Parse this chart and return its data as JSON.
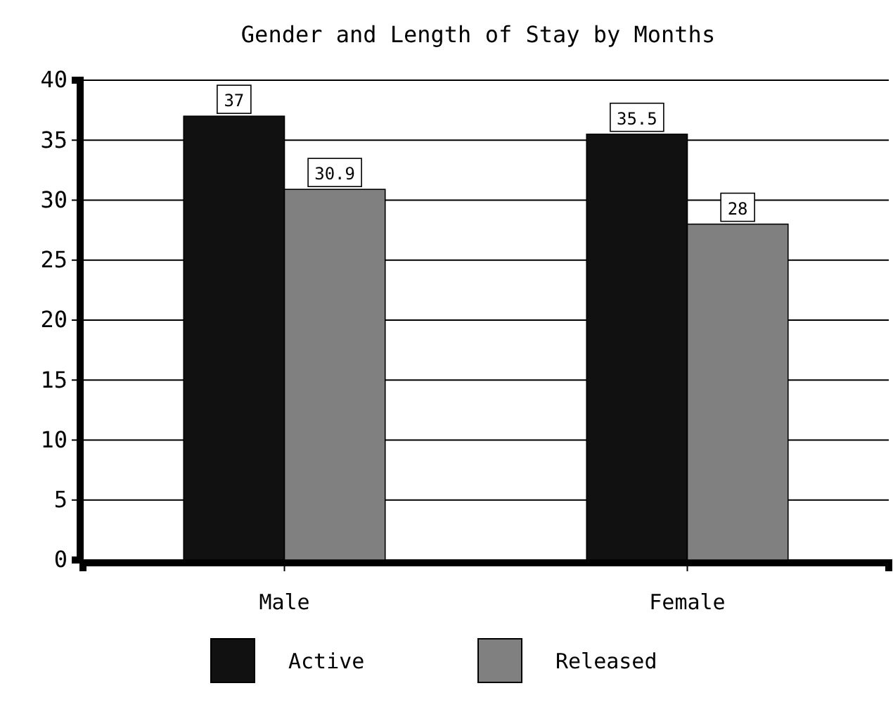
{
  "chart_data": {
    "type": "bar",
    "title": "Gender and Length of Stay by Months",
    "categories": [
      "Male",
      "Female"
    ],
    "series": [
      {
        "name": "Active",
        "color": "#111111",
        "values": [
          37,
          35.5
        ]
      },
      {
        "name": "Released",
        "color": "#808080",
        "values": [
          30.9,
          28
        ]
      }
    ],
    "ylim": [
      0,
      40
    ],
    "yticks": [
      0,
      5,
      10,
      15,
      20,
      25,
      30,
      35,
      40
    ],
    "grid": "y",
    "legend": "bottom",
    "data_labels": true
  }
}
